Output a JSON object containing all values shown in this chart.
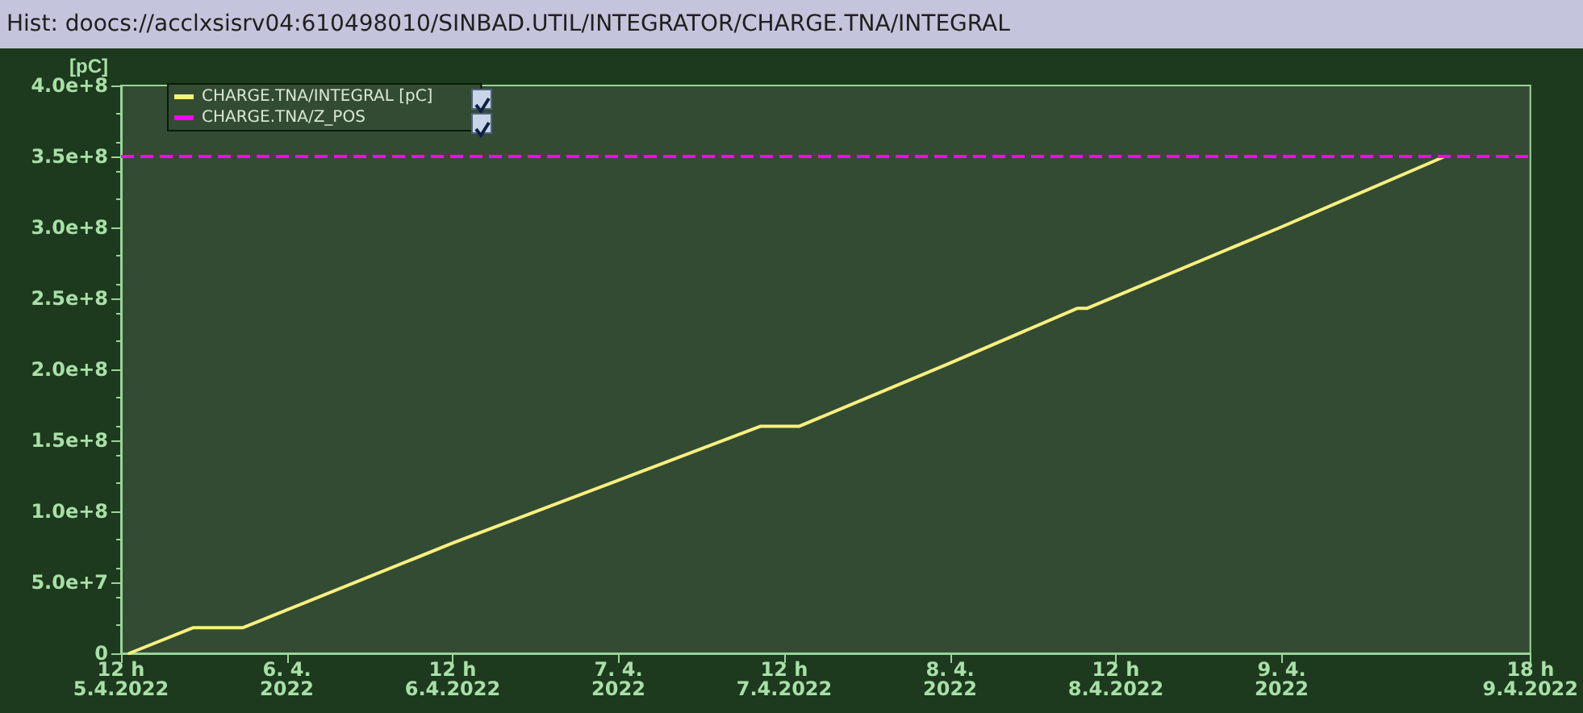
{
  "chart_data": {
    "type": "line",
    "title": "Hist: doocs://acclxsisrv04:610498010/SINBAD.UTIL/INTEGRATOR/CHARGE.TNA/INTEGRAL",
    "ylabel": "[pC]",
    "x": [
      "2022-04-05T12:36",
      "2022-04-05T17:12",
      "2022-04-05T20:48",
      "2022-04-06T12:06",
      "2022-04-07T10:18",
      "2022-04-07T13:06",
      "2022-04-07T23:54",
      "2022-04-08T09:12",
      "2022-04-08T09:54",
      "2022-04-08T23:54",
      "2022-04-09T11:48"
    ],
    "series": [
      {
        "name": "CHARGE.TNA/INTEGRAL [pC]",
        "color": "#f8f080",
        "values": [
          0,
          18000000,
          18000000,
          78000000,
          160000000,
          160000000,
          204000000,
          243000000,
          243000000,
          300000000,
          350000000
        ]
      }
    ],
    "ref_lines": [
      {
        "axis": "y",
        "value": 350000000,
        "label": "CHARGE.TNA/Z_POS",
        "color": "#ff00ff",
        "line_style": "dashed"
      }
    ],
    "xlim": [
      "2022-04-05T12:00",
      "2022-04-09T18:00"
    ],
    "xticks": [
      {
        "value": "2022-04-05T12:00",
        "label": "12 h\n5.4.2022"
      },
      {
        "value": "2022-04-06T00:00",
        "label": "6. 4.\n2022"
      },
      {
        "value": "2022-04-06T12:00",
        "label": "12 h\n6.4.2022"
      },
      {
        "value": "2022-04-07T00:00",
        "label": "7. 4.\n2022"
      },
      {
        "value": "2022-04-07T12:00",
        "label": "12 h\n7.4.2022"
      },
      {
        "value": "2022-04-08T00:00",
        "label": "8. 4.\n2022"
      },
      {
        "value": "2022-04-08T12:00",
        "label": "12 h\n8.4.2022"
      },
      {
        "value": "2022-04-09T00:00",
        "label": "9. 4.\n2022"
      },
      {
        "value": "2022-04-09T18:00",
        "label": "18 h\n9.4.2022"
      }
    ],
    "ylim": [
      0,
      400000000
    ],
    "yticks": [
      0,
      {
        "value": 50000000,
        "label": "5.0e+7"
      },
      {
        "value": 100000000,
        "label": "1.0e+8"
      },
      {
        "value": 150000000,
        "label": "1.5e+8"
      },
      {
        "value": 200000000,
        "label": "2.0e+8"
      },
      {
        "value": 250000000,
        "label": "2.5e+8"
      },
      {
        "value": 300000000,
        "label": "3.0e+8"
      },
      {
        "value": 350000000,
        "label": "3.5e+8"
      },
      {
        "value": 400000000,
        "label": "4.0e+8"
      }
    ],
    "legend": "top left",
    "marker": "none",
    "line_style": "solid"
  }
}
